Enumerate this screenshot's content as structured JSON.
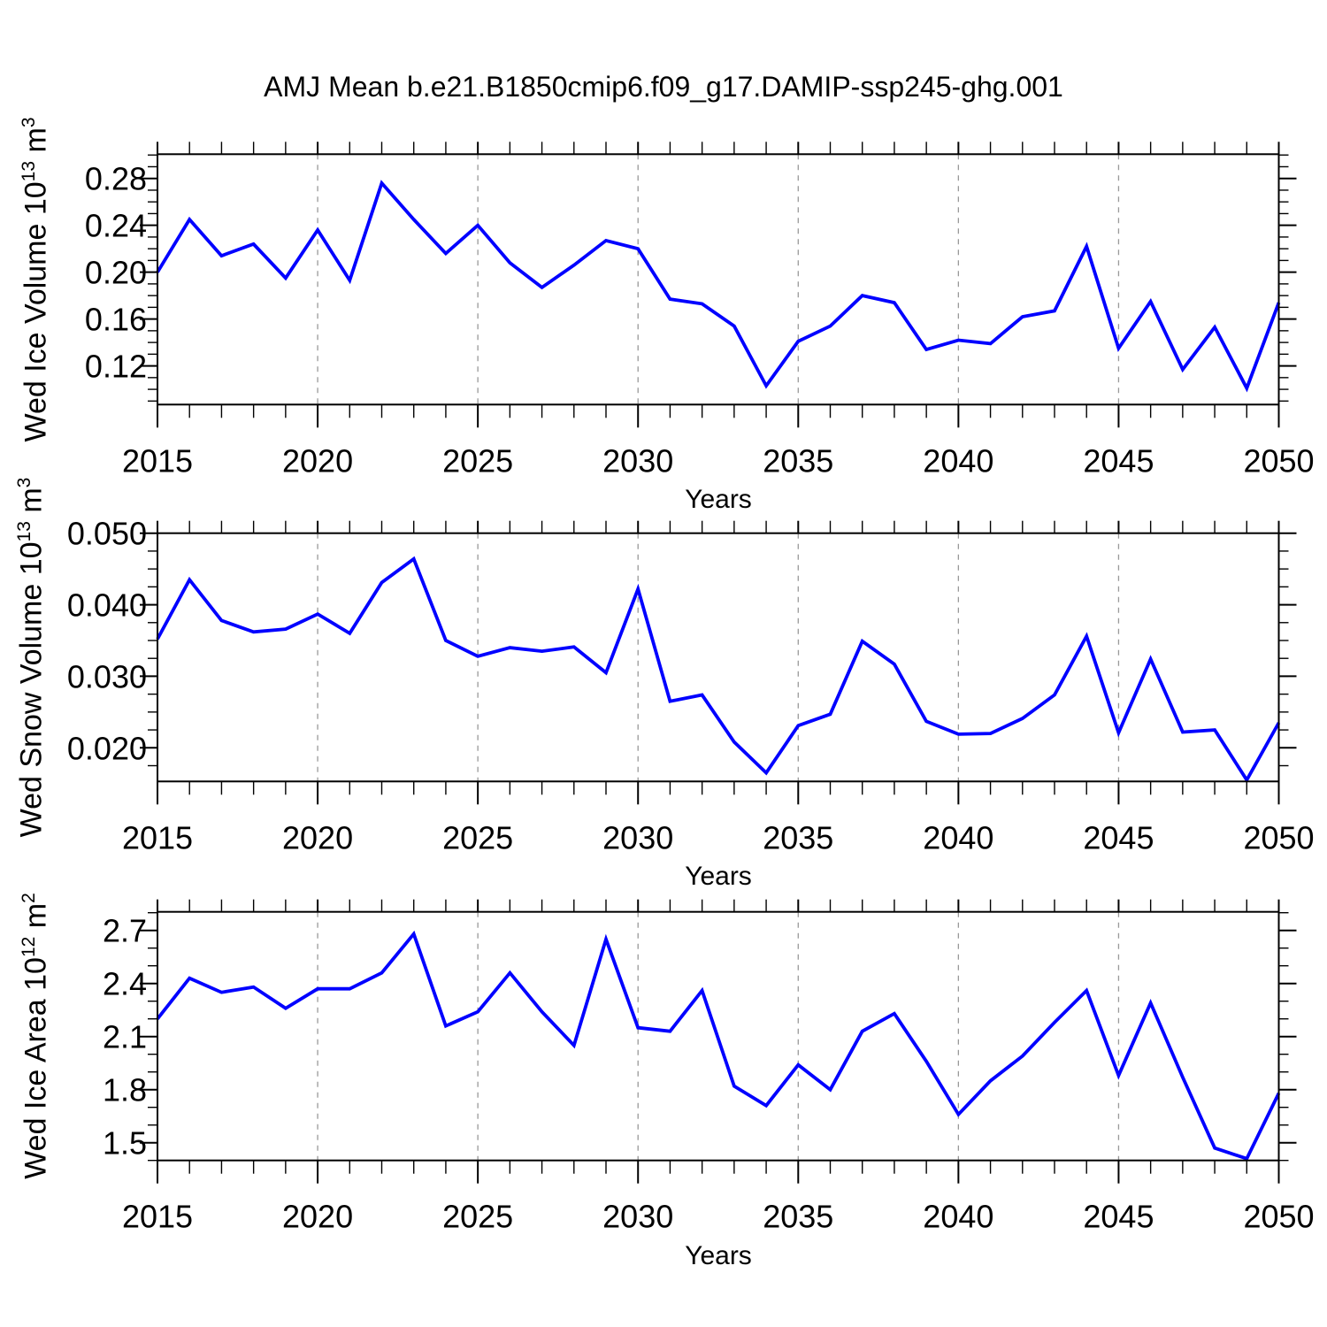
{
  "title": "AMJ Mean b.e21.B1850cmip6.f09_g17.DAMIP-ssp245-ghg.001",
  "colors": {
    "line": "#0000ff",
    "grid": "#999999",
    "frame": "#000000",
    "text": "#000000",
    "background": "#ffffff"
  },
  "years": [
    2015,
    2016,
    2017,
    2018,
    2019,
    2020,
    2021,
    2022,
    2023,
    2024,
    2025,
    2026,
    2027,
    2028,
    2029,
    2030,
    2031,
    2032,
    2033,
    2034,
    2035,
    2036,
    2037,
    2038,
    2039,
    2040,
    2041,
    2042,
    2043,
    2044,
    2045,
    2046,
    2047,
    2048,
    2049,
    2050
  ],
  "xticks": [
    {
      "v": 2015,
      "label": "2015"
    },
    {
      "v": 2020,
      "label": "2020"
    },
    {
      "v": 2025,
      "label": "2025"
    },
    {
      "v": 2030,
      "label": "2030"
    },
    {
      "v": 2035,
      "label": "2035"
    },
    {
      "v": 2040,
      "label": "2040"
    },
    {
      "v": 2045,
      "label": "2045"
    },
    {
      "v": 2050,
      "label": "2050"
    }
  ],
  "grid_years": [
    2020,
    2025,
    2030,
    2035,
    2040,
    2045
  ],
  "chart_data": [
    {
      "type": "line",
      "name": "wed-ice-volume",
      "xlabel": "Years",
      "ylabel": {
        "prefix": "Wed Ice Volume 10",
        "exp": "13",
        "unit": " m",
        "unit_exp": "3"
      },
      "ylim": [
        0.087,
        0.3007
      ],
      "yticks": [
        {
          "v": 0.12,
          "label": "0.12"
        },
        {
          "v": 0.16,
          "label": "0.16"
        },
        {
          "v": 0.2,
          "label": "0.20"
        },
        {
          "v": 0.24,
          "label": "0.24"
        },
        {
          "v": 0.28,
          "label": "0.28"
        }
      ],
      "y_minor_step": 0.01,
      "values": [
        0.2,
        0.245,
        0.214,
        0.224,
        0.195,
        0.236,
        0.193,
        0.276,
        0.245,
        0.216,
        0.24,
        0.208,
        0.187,
        0.206,
        0.227,
        0.22,
        0.177,
        0.173,
        0.154,
        0.103,
        0.141,
        0.154,
        0.18,
        0.174,
        0.134,
        0.142,
        0.139,
        0.162,
        0.167,
        0.222,
        0.135,
        0.175,
        0.117,
        0.153,
        0.101,
        0.174
      ]
    },
    {
      "type": "line",
      "name": "wed-snow-volume",
      "xlabel": "Years",
      "ylabel": {
        "prefix": "Wed Snow Volume 10",
        "exp": "13",
        "unit": " m",
        "unit_exp": "3"
      },
      "ylim": [
        0.0153,
        0.05
      ],
      "yticks": [
        {
          "v": 0.02,
          "label": "0.020"
        },
        {
          "v": 0.03,
          "label": "0.030"
        },
        {
          "v": 0.04,
          "label": "0.040"
        },
        {
          "v": 0.05,
          "label": "0.050"
        }
      ],
      "y_minor_step": 0.0025,
      "values": [
        0.0352,
        0.0435,
        0.0378,
        0.0362,
        0.0366,
        0.0387,
        0.036,
        0.0431,
        0.0464,
        0.035,
        0.0328,
        0.034,
        0.0335,
        0.0341,
        0.0305,
        0.0422,
        0.0265,
        0.0274,
        0.0208,
        0.0165,
        0.0231,
        0.0247,
        0.0349,
        0.0317,
        0.0237,
        0.0219,
        0.022,
        0.0241,
        0.0274,
        0.0356,
        0.0221,
        0.0324,
        0.0222,
        0.0225,
        0.0155,
        0.0235
      ]
    },
    {
      "type": "line",
      "name": "wed-ice-area",
      "xlabel": "Years",
      "ylabel": {
        "prefix": "Wed Ice Area 10",
        "exp": "12",
        "unit": " m",
        "unit_exp": "2"
      },
      "ylim": [
        1.4,
        2.805
      ],
      "yticks": [
        {
          "v": 1.5,
          "label": "1.5"
        },
        {
          "v": 1.8,
          "label": "1.8"
        },
        {
          "v": 2.1,
          "label": "2.1"
        },
        {
          "v": 2.4,
          "label": "2.4"
        },
        {
          "v": 2.7,
          "label": "2.7"
        }
      ],
      "y_minor_step": 0.1,
      "values": [
        2.2,
        2.43,
        2.35,
        2.38,
        2.26,
        2.37,
        2.37,
        2.46,
        2.68,
        2.16,
        2.24,
        2.46,
        2.24,
        2.05,
        2.65,
        2.15,
        2.13,
        2.36,
        1.82,
        1.71,
        1.94,
        1.8,
        2.13,
        2.23,
        1.96,
        1.66,
        1.85,
        1.99,
        2.18,
        2.36,
        1.88,
        2.29,
        1.87,
        1.47,
        1.41,
        1.78
      ]
    }
  ]
}
